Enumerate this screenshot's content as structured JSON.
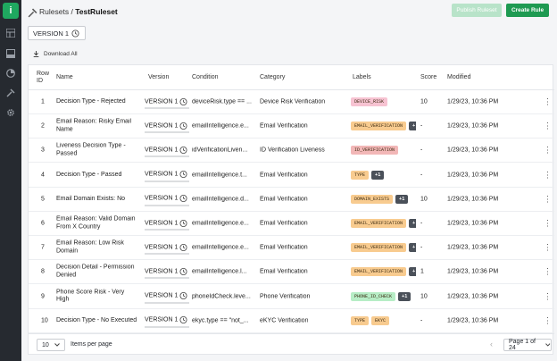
{
  "sidebar": {
    "logo": "i",
    "icons": [
      "grid-icon",
      "table-icon",
      "chart-icon",
      "hammer-icon",
      "gear-icon"
    ]
  },
  "breadcrumb": {
    "parent": "Rulesets",
    "separator": "/",
    "current": "TestRuleset"
  },
  "toolbar": {
    "publish_label": "Publish Ruleset",
    "create_label": "Create Rule"
  },
  "version_selector": {
    "label": "VERSION 1"
  },
  "download_label": "Download All",
  "table": {
    "headers": {
      "row_id": "Row ID",
      "name": "Name",
      "version": "Version",
      "condition": "Condition",
      "category": "Category",
      "labels": "Labels",
      "score": "Score",
      "modified": "Modified"
    },
    "rows": [
      {
        "id": "1",
        "name": "Decision Type - Rejected",
        "version": "VERSION 1",
        "condition": "deviceRisk.type == ...",
        "category": "Device Risk Verification",
        "labels": [
          {
            "text": "DEVICE_RISK",
            "color": "pink"
          }
        ],
        "extra": "",
        "score": "10",
        "modified": "1/29/23, 10:36 PM"
      },
      {
        "id": "2",
        "name": "Email Reason: Risky Email Name",
        "version": "VERSION 1",
        "condition": "emailIntelligence.e...",
        "category": "Email Verification",
        "labels": [
          {
            "text": "EMAIL_VERIFICATION",
            "color": "orange"
          }
        ],
        "extra": "+",
        "score": "-",
        "modified": "1/29/23, 10:36 PM"
      },
      {
        "id": "3",
        "name": "Liveness Decision Type - Passed",
        "version": "VERSION 1",
        "condition": "idVerificationLiven...",
        "category": "ID Verification Liveness",
        "labels": [
          {
            "text": "ID_VERIFICATION",
            "color": "red"
          }
        ],
        "extra": "",
        "score": "-",
        "modified": "1/29/23, 10:36 PM"
      },
      {
        "id": "4",
        "name": "Decision Type - Passed",
        "version": "VERSION 1",
        "condition": "emailIntelligence.t...",
        "category": "Email Verification",
        "labels": [
          {
            "text": "TYPE",
            "color": "orange"
          }
        ],
        "extra": "+1",
        "score": "-",
        "modified": "1/29/23, 10:36 PM"
      },
      {
        "id": "5",
        "name": "Email Domain Exists: No",
        "version": "VERSION 1",
        "condition": "emailIntelligence.d...",
        "category": "Email Verification",
        "labels": [
          {
            "text": "DOMAIN_EXISTS",
            "color": "orange"
          }
        ],
        "extra": "+1",
        "score": "10",
        "modified": "1/29/23, 10:36 PM"
      },
      {
        "id": "6",
        "name": "Email Reason: Valid Domain From X Country",
        "version": "VERSION 1",
        "condition": "emailIntelligence.e...",
        "category": "Email Verification",
        "labels": [
          {
            "text": "EMAIL_VERIFICATION",
            "color": "orange"
          }
        ],
        "extra": "+",
        "score": "-",
        "modified": "1/29/23, 10:36 PM"
      },
      {
        "id": "7",
        "name": "Email Reason: Low Risk Domain",
        "version": "VERSION 1",
        "condition": "emailIntelligence.e...",
        "category": "Email Verification",
        "labels": [
          {
            "text": "EMAIL_VERIFICATION",
            "color": "orange"
          }
        ],
        "extra": "+",
        "score": "-",
        "modified": "1/29/23, 10:36 PM"
      },
      {
        "id": "8",
        "name": "Decision Detail - Permission Denied",
        "version": "VERSION 1",
        "condition": "emailIntelligence.l...",
        "category": "Email Verification",
        "labels": [
          {
            "text": "EMAIL_VERIFICATION",
            "color": "orange"
          }
        ],
        "extra": "+",
        "score": "1",
        "modified": "1/29/23, 10:36 PM"
      },
      {
        "id": "9",
        "name": "Phone Score Risk - Very High",
        "version": "VERSION 1",
        "condition": "phoneIdCheck.leve...",
        "category": "Phone Verification",
        "labels": [
          {
            "text": "PHONE_ID_CHECK",
            "color": "green"
          }
        ],
        "extra": "+1",
        "score": "10",
        "modified": "1/29/23, 10:36 PM"
      },
      {
        "id": "10",
        "name": "Decision Type - No Executed",
        "version": "VERSION 1",
        "condition": "ekyc.type == \"not_...",
        "category": "eKYC Verification",
        "labels": [
          {
            "text": "TYPE",
            "color": "orange"
          },
          {
            "text": "EKYC",
            "color": "orange"
          }
        ],
        "extra": "",
        "score": "-",
        "modified": "1/29/23, 10:36 PM"
      }
    ]
  },
  "pagination": {
    "per_page_value": "10",
    "per_page_label": "Items per page",
    "page_label": "Page 1 of 24"
  },
  "colors": {
    "sidebar": "#262a30",
    "accent": "#1e9a52",
    "accent_disabled": "#b8e3c9"
  }
}
